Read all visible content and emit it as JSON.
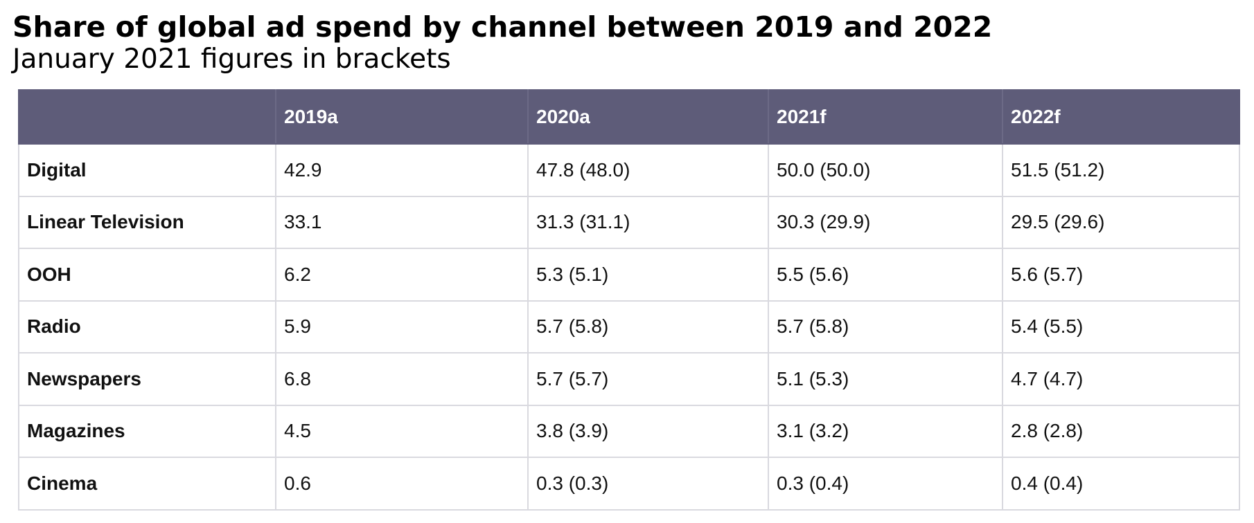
{
  "chart_data": {
    "type": "table",
    "title": "Share of global ad spend by channel between 2019 and 2022",
    "subtitle": "January 2021 figures in brackets",
    "corner_label": "",
    "columns": [
      "2019a",
      "2020a",
      "2021f",
      "2022f"
    ],
    "rows": [
      {
        "label": "Digital",
        "cells": [
          "42.9",
          "47.8 (48.0)",
          "50.0 (50.0)",
          "51.5 (51.2)"
        ]
      },
      {
        "label": "Linear Television",
        "cells": [
          "33.1",
          "31.3 (31.1)",
          "30.3 (29.9)",
          "29.5 (29.6)"
        ]
      },
      {
        "label": "OOH",
        "cells": [
          "6.2",
          "5.3 (5.1)",
          "5.5 (5.6)",
          "5.6 (5.7)"
        ]
      },
      {
        "label": "Radio",
        "cells": [
          "5.9",
          "5.7 (5.8)",
          "5.7 (5.8)",
          "5.4 (5.5)"
        ]
      },
      {
        "label": "Newspapers",
        "cells": [
          "6.8",
          "5.7 (5.7)",
          "5.1 (5.3)",
          "4.7 (4.7)"
        ]
      },
      {
        "label": "Magazines",
        "cells": [
          "4.5",
          "3.8 (3.9)",
          "3.1 (3.2)",
          "2.8 (2.8)"
        ]
      },
      {
        "label": "Cinema",
        "cells": [
          "0.6",
          "0.3 (0.3)",
          "0.3 (0.4)",
          "0.4 (0.4)"
        ]
      }
    ]
  },
  "colors": {
    "header_background": "#5e5c79",
    "header_text": "#ffffff",
    "grid_line": "#d9d9df",
    "body_text": "#111111"
  }
}
